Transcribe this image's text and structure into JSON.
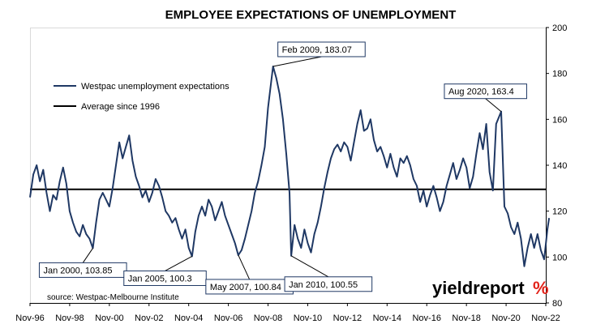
{
  "chart_data": {
    "type": "line",
    "title": "EMPLOYEE EXPECTATIONS OF UNEMPLOYMENT",
    "xlabel": "",
    "ylabel": "",
    "x_ticks": [
      "Nov-96",
      "Nov-98",
      "Nov-00",
      "Nov-02",
      "Nov-04",
      "Nov-06",
      "Nov-08",
      "Nov-10",
      "Nov-12",
      "Nov-14",
      "Nov-16",
      "Nov-18",
      "Nov-20",
      "Nov-22"
    ],
    "y_ticks": [
      80,
      100,
      120,
      140,
      160,
      180,
      200
    ],
    "ylim": [
      80,
      200
    ],
    "x_axis_position": "bottom",
    "y_axis_position": "right",
    "grid": false,
    "legend_position": "top-left",
    "series": [
      {
        "name": "Westpac unemployment expectations",
        "color": "#1f3864",
        "points": [
          [
            "1996-11",
            126
          ],
          [
            "1997-01",
            136
          ],
          [
            "1997-03",
            140
          ],
          [
            "1997-05",
            133
          ],
          [
            "1997-07",
            138
          ],
          [
            "1997-09",
            128
          ],
          [
            "1997-11",
            120
          ],
          [
            "1998-01",
            127
          ],
          [
            "1998-03",
            125
          ],
          [
            "1998-05",
            133
          ],
          [
            "1998-07",
            139
          ],
          [
            "1998-09",
            132
          ],
          [
            "1998-11",
            120
          ],
          [
            "1999-01",
            115
          ],
          [
            "1999-03",
            111
          ],
          [
            "1999-05",
            109
          ],
          [
            "1999-07",
            114
          ],
          [
            "1999-09",
            110
          ],
          [
            "1999-11",
            108
          ],
          [
            "2000-01",
            103.85
          ],
          [
            "2000-03",
            115
          ],
          [
            "2000-05",
            125
          ],
          [
            "2000-07",
            128
          ],
          [
            "2000-09",
            125
          ],
          [
            "2000-11",
            122
          ],
          [
            "2001-01",
            130
          ],
          [
            "2001-03",
            140
          ],
          [
            "2001-05",
            150
          ],
          [
            "2001-07",
            143
          ],
          [
            "2001-09",
            148
          ],
          [
            "2001-11",
            153
          ],
          [
            "2002-01",
            142
          ],
          [
            "2002-03",
            135
          ],
          [
            "2002-05",
            131
          ],
          [
            "2002-07",
            126
          ],
          [
            "2002-09",
            129
          ],
          [
            "2002-11",
            124
          ],
          [
            "2003-01",
            128
          ],
          [
            "2003-03",
            134
          ],
          [
            "2003-05",
            131
          ],
          [
            "2003-07",
            126
          ],
          [
            "2003-09",
            120
          ],
          [
            "2003-11",
            118
          ],
          [
            "2004-01",
            115
          ],
          [
            "2004-03",
            117
          ],
          [
            "2004-05",
            112
          ],
          [
            "2004-07",
            108
          ],
          [
            "2004-09",
            112
          ],
          [
            "2004-11",
            104
          ],
          [
            "2005-01",
            100.3
          ],
          [
            "2005-03",
            111
          ],
          [
            "2005-05",
            118
          ],
          [
            "2005-07",
            122
          ],
          [
            "2005-09",
            118
          ],
          [
            "2005-11",
            125
          ],
          [
            "2006-01",
            122
          ],
          [
            "2006-03",
            116
          ],
          [
            "2006-05",
            120
          ],
          [
            "2006-07",
            124
          ],
          [
            "2006-09",
            118
          ],
          [
            "2006-11",
            114
          ],
          [
            "2007-01",
            110
          ],
          [
            "2007-03",
            106
          ],
          [
            "2007-05",
            100.84
          ],
          [
            "2007-07",
            103
          ],
          [
            "2007-09",
            108
          ],
          [
            "2007-11",
            114
          ],
          [
            "2008-01",
            120
          ],
          [
            "2008-03",
            128
          ],
          [
            "2008-05",
            133
          ],
          [
            "2008-07",
            140
          ],
          [
            "2008-09",
            148
          ],
          [
            "2008-11",
            165
          ],
          [
            "2009-01",
            177
          ],
          [
            "2009-02",
            183.07
          ],
          [
            "2009-04",
            178
          ],
          [
            "2009-06",
            171
          ],
          [
            "2009-08",
            160
          ],
          [
            "2009-10",
            145
          ],
          [
            "2009-12",
            128
          ],
          [
            "2010-01",
            100.55
          ],
          [
            "2010-03",
            114
          ],
          [
            "2010-05",
            108
          ],
          [
            "2010-07",
            104
          ],
          [
            "2010-09",
            112
          ],
          [
            "2010-11",
            106
          ],
          [
            "2011-01",
            102
          ],
          [
            "2011-03",
            110
          ],
          [
            "2011-05",
            115
          ],
          [
            "2011-07",
            122
          ],
          [
            "2011-09",
            130
          ],
          [
            "2011-11",
            137
          ],
          [
            "2012-01",
            143
          ],
          [
            "2012-03",
            147
          ],
          [
            "2012-05",
            149
          ],
          [
            "2012-07",
            146
          ],
          [
            "2012-09",
            150
          ],
          [
            "2012-11",
            148
          ],
          [
            "2013-01",
            142
          ],
          [
            "2013-03",
            150
          ],
          [
            "2013-05",
            158
          ],
          [
            "2013-07",
            164
          ],
          [
            "2013-09",
            155
          ],
          [
            "2013-11",
            156
          ],
          [
            "2014-01",
            160
          ],
          [
            "2014-03",
            151
          ],
          [
            "2014-05",
            146
          ],
          [
            "2014-07",
            148
          ],
          [
            "2014-09",
            144
          ],
          [
            "2014-11",
            139
          ],
          [
            "2015-01",
            145
          ],
          [
            "2015-03",
            139
          ],
          [
            "2015-05",
            135
          ],
          [
            "2015-07",
            143
          ],
          [
            "2015-09",
            141
          ],
          [
            "2015-11",
            144
          ],
          [
            "2016-01",
            140
          ],
          [
            "2016-03",
            134
          ],
          [
            "2016-05",
            131
          ],
          [
            "2016-07",
            124
          ],
          [
            "2016-09",
            129
          ],
          [
            "2016-11",
            122
          ],
          [
            "2017-01",
            127
          ],
          [
            "2017-03",
            131
          ],
          [
            "2017-05",
            126
          ],
          [
            "2017-07",
            120
          ],
          [
            "2017-09",
            124
          ],
          [
            "2017-11",
            131
          ],
          [
            "2018-01",
            136
          ],
          [
            "2018-03",
            141
          ],
          [
            "2018-05",
            134
          ],
          [
            "2018-07",
            138
          ],
          [
            "2018-09",
            143
          ],
          [
            "2018-11",
            139
          ],
          [
            "2019-01",
            130
          ],
          [
            "2019-03",
            135
          ],
          [
            "2019-05",
            145
          ],
          [
            "2019-07",
            154
          ],
          [
            "2019-09",
            147
          ],
          [
            "2019-11",
            158
          ],
          [
            "2020-01",
            137
          ],
          [
            "2020-03",
            129
          ],
          [
            "2020-05",
            158
          ],
          [
            "2020-08",
            163.4
          ],
          [
            "2020-10",
            122
          ],
          [
            "2020-12",
            119
          ],
          [
            "2021-02",
            113
          ],
          [
            "2021-04",
            110
          ],
          [
            "2021-06",
            115
          ],
          [
            "2021-08",
            108
          ],
          [
            "2021-10",
            96
          ],
          [
            "2021-12",
            104
          ],
          [
            "2022-02",
            110
          ],
          [
            "2022-04",
            104
          ],
          [
            "2022-06",
            110
          ],
          [
            "2022-08",
            103
          ],
          [
            "2022-10",
            99
          ],
          [
            "2022-12",
            112
          ],
          [
            "2023-01",
            117
          ]
        ]
      },
      {
        "name": "Average since 1996",
        "color": "#000000",
        "value": 129.5
      }
    ],
    "annotations": [
      {
        "label": "Feb 2009, 183.07",
        "date": "2009-02",
        "value": 183.07
      },
      {
        "label": "Aug 2020, 163.4",
        "date": "2020-08",
        "value": 163.4
      },
      {
        "label": "Jan 2000, 103.85",
        "date": "2000-01",
        "value": 103.85
      },
      {
        "label": "Jan 2005, 100.3",
        "date": "2005-01",
        "value": 100.3
      },
      {
        "label": "May 2007, 100.84",
        "date": "2007-05",
        "value": 100.84
      },
      {
        "label": "Jan 2010, 100.55",
        "date": "2010-01",
        "value": 100.55
      }
    ]
  },
  "source_note": "source: Westpac-Melbourne Institute",
  "logo": {
    "word": "yieldreport",
    "symbol": "%"
  }
}
